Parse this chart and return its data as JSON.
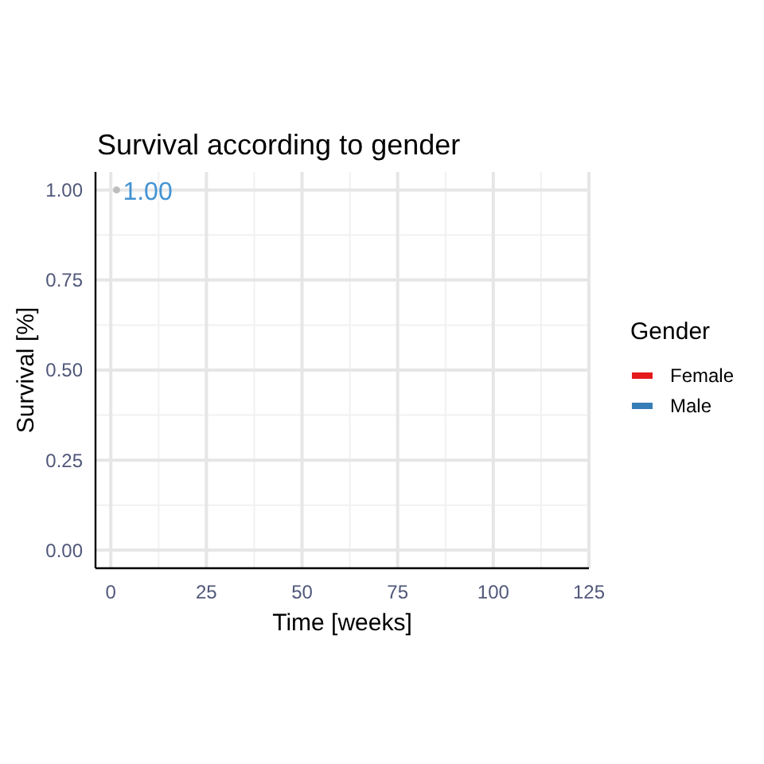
{
  "chart_data": {
    "type": "scatter",
    "title": "Survival according to gender",
    "xlabel": "Time [weeks]",
    "ylabel": "Survival [%]",
    "legend_title": "Gender",
    "xlim": [
      -4,
      125
    ],
    "xticks": [
      0,
      25,
      50,
      75,
      100,
      125
    ],
    "ylim": [
      -0.05,
      1.05
    ],
    "yticks": [
      {
        "value": 0,
        "label": "0.00"
      },
      {
        "value": 0.25,
        "label": "0.25"
      },
      {
        "value": 0.5,
        "label": "0.50"
      },
      {
        "value": 0.75,
        "label": "0.75"
      },
      {
        "value": 1,
        "label": "1.00"
      }
    ],
    "series": [
      {
        "name": "Female",
        "type": "step",
        "color": "#e41a1c"
      },
      {
        "name": "Male",
        "type": "step",
        "color": "#377eb8"
      },
      {
        "color": "#bdbdbd",
        "x": [
          1.5
        ],
        "values": [
          1
        ],
        "value_labels": [
          "1.00"
        ]
      }
    ],
    "grid": true,
    "legend": "right"
  }
}
